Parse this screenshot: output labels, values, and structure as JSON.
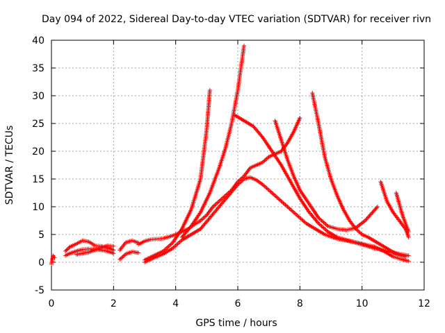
{
  "chart_data": {
    "type": "scatter",
    "title": "Day 094 of 2022, Sidereal Day-to-day VTEC variation (SDTVAR) for receiver rivn",
    "xlabel": "GPS time / hours",
    "ylabel": "SDTVAR / TECUs",
    "xlim": [
      0,
      12
    ],
    "ylim": [
      -5,
      40
    ],
    "xticks": [
      0,
      2,
      4,
      6,
      8,
      10,
      12
    ],
    "yticks": [
      -5,
      0,
      5,
      10,
      15,
      20,
      25,
      30,
      35,
      40
    ],
    "grid": true,
    "marker": "+",
    "color": "#ff0000",
    "series": [
      {
        "name": "s1",
        "x": [
          0.0,
          0.05,
          0.1
        ],
        "y": [
          -0.3,
          1.2,
          0.8
        ]
      },
      {
        "name": "s2",
        "x": [
          0.45,
          0.6,
          0.8,
          1.0,
          1.2,
          1.4,
          1.6,
          1.8,
          2.0
        ],
        "y": [
          2.0,
          2.8,
          3.3,
          3.9,
          3.7,
          3.0,
          2.9,
          2.6,
          2.2
        ]
      },
      {
        "name": "s3",
        "x": [
          0.45,
          0.6,
          0.8,
          1.0,
          1.2,
          1.4,
          1.6,
          1.8,
          2.0
        ],
        "y": [
          1.2,
          1.6,
          2.0,
          2.3,
          2.4,
          2.4,
          2.2,
          2.0,
          1.6
        ]
      },
      {
        "name": "s4",
        "x": [
          0.8,
          1.0,
          1.2,
          1.4,
          1.6,
          1.8,
          2.0
        ],
        "y": [
          1.4,
          1.6,
          1.8,
          2.2,
          2.6,
          3.0,
          2.9
        ]
      },
      {
        "name": "s5",
        "x": [
          2.2,
          2.4,
          2.6,
          2.8
        ],
        "y": [
          2.2,
          3.6,
          3.9,
          3.5
        ]
      },
      {
        "name": "s6",
        "x": [
          2.2,
          2.4,
          2.6,
          2.8
        ],
        "y": [
          0.5,
          1.5,
          1.9,
          1.7
        ]
      },
      {
        "name": "s7",
        "x": [
          2.8,
          3.0,
          3.2,
          3.4,
          3.6,
          3.8,
          4.0,
          4.2,
          4.4,
          4.6,
          4.8,
          5.0,
          5.2,
          5.4,
          5.6,
          5.8,
          6.0,
          6.2,
          6.4,
          6.6,
          6.8,
          7.0,
          7.2,
          7.4,
          7.6,
          7.8,
          8.0
        ],
        "y": [
          3.2,
          3.8,
          4.1,
          4.2,
          4.3,
          4.6,
          5.0,
          5.5,
          6.0,
          6.8,
          7.5,
          8.5,
          10.0,
          11.0,
          12.0,
          13.0,
          14.5,
          15.5,
          17.0,
          17.5,
          18.0,
          19.0,
          19.5,
          20.0,
          21.5,
          23.5,
          26.0
        ]
      },
      {
        "name": "s8",
        "x": [
          3.0,
          3.3,
          3.6,
          3.9,
          4.2,
          4.5,
          4.8,
          5.1,
          5.4,
          5.7,
          6.0,
          6.2,
          6.4,
          6.6,
          6.8,
          7.0,
          7.3,
          7.6,
          7.9,
          8.2,
          8.5,
          8.8,
          9.2,
          9.6,
          10.0,
          10.4,
          10.8,
          11.2,
          11.5
        ],
        "y": [
          0.0,
          0.8,
          1.5,
          2.5,
          4.0,
          5.0,
          6.0,
          8.0,
          10.0,
          12.0,
          14.0,
          15.0,
          15.3,
          14.8,
          14.0,
          13.0,
          11.5,
          10.0,
          8.5,
          7.0,
          6.0,
          5.0,
          4.2,
          3.8,
          3.2,
          2.5,
          2.0,
          1.5,
          1.2
        ]
      },
      {
        "name": "s9",
        "x": [
          3.0,
          3.3,
          3.6,
          3.9,
          4.2,
          4.5,
          4.8,
          5.0,
          5.1
        ],
        "y": [
          0.4,
          1.2,
          2.0,
          3.5,
          6.0,
          9.5,
          15.0,
          24.0,
          31.0
        ]
      },
      {
        "name": "s10",
        "x": [
          4.2,
          4.5,
          4.8,
          5.1,
          5.4,
          5.6,
          5.8,
          5.9,
          6.0,
          6.1,
          6.2
        ],
        "y": [
          4.5,
          6.5,
          9.0,
          12.5,
          17.0,
          20.5,
          25.0,
          28.0,
          31.0,
          35.0,
          39.0
        ]
      },
      {
        "name": "s11",
        "x": [
          5.9,
          6.2,
          6.5,
          6.8,
          7.1,
          7.4,
          7.7,
          8.0,
          8.3,
          8.6,
          8.9,
          9.2,
          9.5,
          9.8,
          10.1,
          10.4,
          10.7,
          11.0,
          11.3,
          11.5
        ],
        "y": [
          26.5,
          25.5,
          24.5,
          22.5,
          20.0,
          17.5,
          14.5,
          11.5,
          9.0,
          7.0,
          5.5,
          4.5,
          4.0,
          3.6,
          3.2,
          2.8,
          2.0,
          1.0,
          0.5,
          0.2
        ]
      },
      {
        "name": "s12",
        "x": [
          7.2,
          7.4,
          7.6,
          7.8,
          8.0,
          8.3,
          8.6,
          8.9,
          9.2,
          9.5,
          9.8,
          10.1,
          10.5
        ],
        "y": [
          25.5,
          22.0,
          18.5,
          15.5,
          13.0,
          10.5,
          8.0,
          6.5,
          6.0,
          5.8,
          6.2,
          7.5,
          10.0
        ]
      },
      {
        "name": "s13",
        "x": [
          8.4,
          8.6,
          8.8,
          9.0,
          9.2,
          9.4,
          9.6,
          9.8,
          10.0,
          10.2,
          10.5,
          10.8,
          11.1,
          11.4
        ],
        "y": [
          30.5,
          25.0,
          19.0,
          15.0,
          12.0,
          9.5,
          7.5,
          6.0,
          5.0,
          4.5,
          3.5,
          2.5,
          1.5,
          1.0
        ]
      },
      {
        "name": "s14",
        "x": [
          10.6,
          10.8,
          11.0,
          11.2,
          11.4,
          11.5
        ],
        "y": [
          14.5,
          11.0,
          9.0,
          7.5,
          6.0,
          4.5
        ]
      },
      {
        "name": "s15",
        "x": [
          11.1,
          11.2,
          11.3,
          11.4,
          11.5
        ],
        "y": [
          12.5,
          10.5,
          8.5,
          7.0,
          5.5
        ]
      }
    ]
  }
}
